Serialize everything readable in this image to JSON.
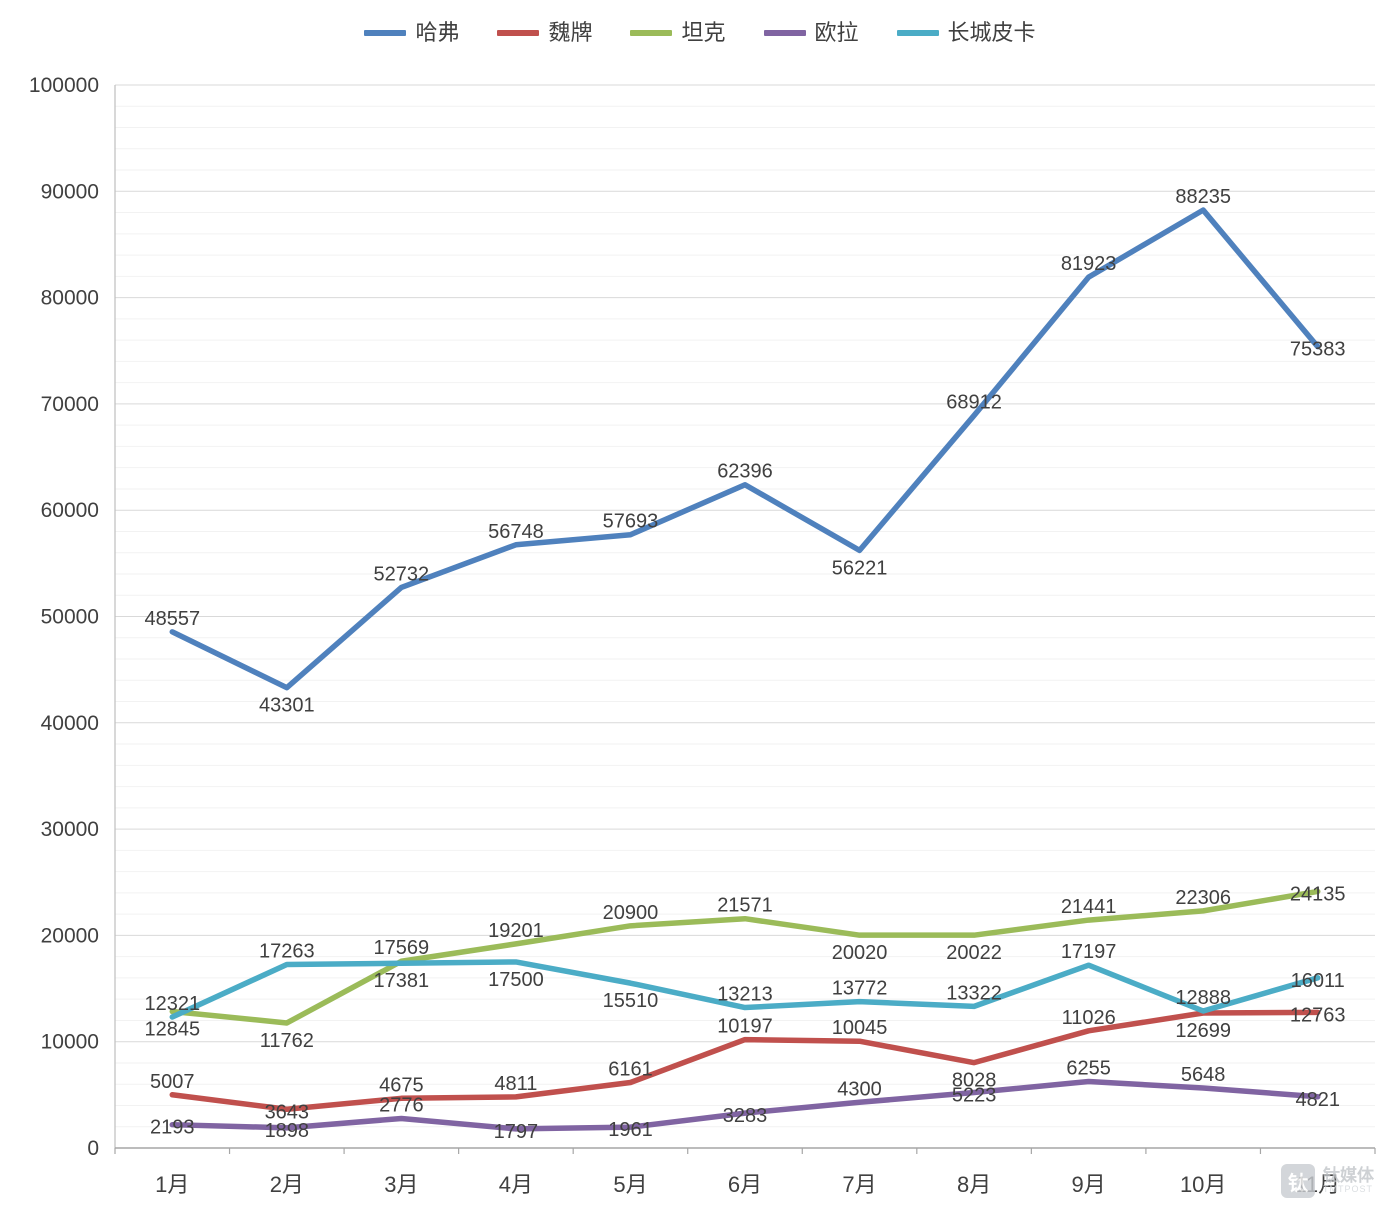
{
  "chart_data": {
    "type": "line",
    "title": "",
    "categories": [
      "1月",
      "2月",
      "3月",
      "4月",
      "5月",
      "6月",
      "7月",
      "8月",
      "9月",
      "10月",
      "11月"
    ],
    "ylim": [
      0,
      100000
    ],
    "y_major_step": 10000,
    "y_minor_step": 2000,
    "grid": true,
    "legend_position": "top",
    "axis_color": "#a6a6a6",
    "major_grid_color": "#d9d9d9",
    "minor_grid_color": "#f2f2f2",
    "label_color": "#404040",
    "series": [
      {
        "key": "haval",
        "name": "哈弗",
        "color": "#4F81BD",
        "values": [
          48557,
          43301,
          52732,
          56748,
          57693,
          62396,
          56221,
          68912,
          81923,
          88235,
          75383
        ],
        "label_pos": [
          "above",
          "below",
          "above",
          "above",
          "above",
          "above",
          "below",
          "above",
          "above",
          "above",
          "side"
        ]
      },
      {
        "key": "wey",
        "name": "魏牌",
        "color": "#C0504D",
        "values": [
          5007,
          3643,
          4675,
          4811,
          6161,
          10197,
          10045,
          8028,
          11026,
          12699,
          12763
        ],
        "label_pos": [
          "above",
          "side",
          "above",
          "above",
          "above",
          "above",
          "above",
          "below",
          "above",
          "below",
          "side"
        ]
      },
      {
        "key": "tank",
        "name": "坦克",
        "color": "#9BBB59",
        "values": [
          12845,
          11762,
          17569,
          19201,
          20900,
          21571,
          20020,
          20022,
          21441,
          22306,
          24135
        ],
        "label_pos": [
          "below",
          "below",
          "above",
          "above",
          "above",
          "above",
          "below",
          "below",
          "above",
          "above",
          "side"
        ]
      },
      {
        "key": "ora",
        "name": "欧拉",
        "color": "#8064A2",
        "values": [
          2193,
          1898,
          2776,
          1797,
          1961,
          3283,
          4300,
          5223,
          6255,
          5648,
          4821
        ],
        "label_pos": [
          "side",
          "side",
          "above",
          "side",
          "side",
          "side",
          "above",
          "side",
          "above",
          "above",
          "side"
        ]
      },
      {
        "key": "gw-pickup",
        "name": "长城皮卡",
        "color": "#4BACC6",
        "values": [
          12321,
          17263,
          17381,
          17500,
          15510,
          13213,
          13772,
          13322,
          17197,
          12888,
          16011
        ],
        "label_pos": [
          "above",
          "above",
          "below",
          "below",
          "below",
          "above",
          "above",
          "above",
          "above",
          "above",
          "side"
        ]
      }
    ]
  },
  "watermark": {
    "logo_char": "钛",
    "name": "钛媒体",
    "sub": "TMTPOST"
  }
}
